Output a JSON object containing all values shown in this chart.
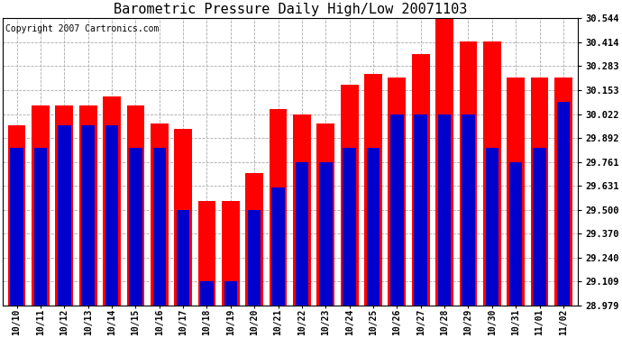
{
  "title": "Barometric Pressure Daily High/Low 20071103",
  "copyright": "Copyright 2007 Cartronics.com",
  "categories": [
    "10/10",
    "10/11",
    "10/12",
    "10/13",
    "10/14",
    "10/15",
    "10/16",
    "10/17",
    "10/18",
    "10/19",
    "10/20",
    "10/21",
    "10/22",
    "10/23",
    "10/24",
    "10/25",
    "10/26",
    "10/27",
    "10/28",
    "10/29",
    "10/30",
    "10/31",
    "11/01",
    "11/02"
  ],
  "highs": [
    29.96,
    30.07,
    30.07,
    30.07,
    30.12,
    30.07,
    29.97,
    29.94,
    29.55,
    29.55,
    29.7,
    30.05,
    30.02,
    29.97,
    30.18,
    30.24,
    30.22,
    30.35,
    30.54,
    30.42,
    30.42,
    30.22,
    30.22,
    30.22
  ],
  "lows": [
    29.84,
    29.84,
    29.96,
    29.96,
    29.96,
    29.84,
    29.84,
    29.5,
    29.11,
    29.11,
    29.5,
    29.62,
    29.76,
    29.76,
    29.84,
    29.84,
    30.02,
    30.02,
    30.02,
    30.02,
    29.84,
    29.76,
    29.84,
    30.09
  ],
  "high_color": "#ff0000",
  "low_color": "#0000cc",
  "background_color": "#ffffff",
  "plot_bg_color": "#ffffff",
  "grid_color": "#aaaaaa",
  "ylim_min": 28.979,
  "ylim_max": 30.544,
  "yticks": [
    28.979,
    29.109,
    29.24,
    29.37,
    29.5,
    29.631,
    29.761,
    29.892,
    30.022,
    30.153,
    30.283,
    30.414,
    30.544
  ],
  "title_fontsize": 11,
  "copyright_fontsize": 7
}
